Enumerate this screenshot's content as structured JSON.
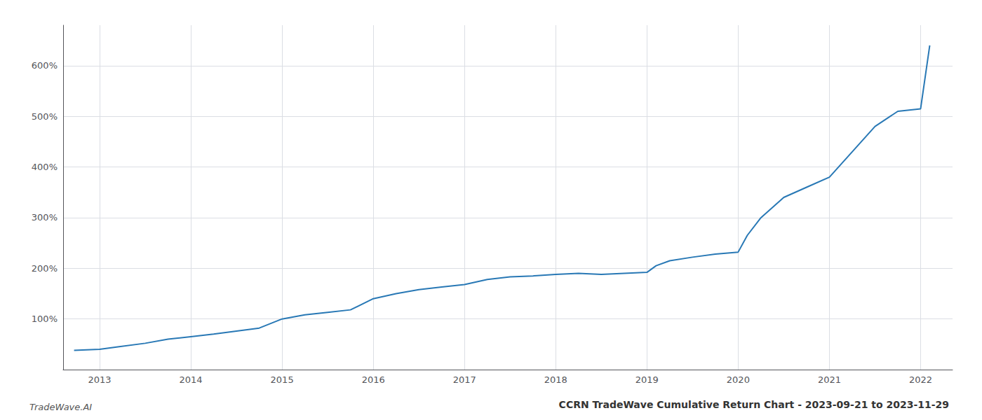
{
  "chart_data": {
    "type": "line",
    "title": "CCRN TradeWave Cumulative Return Chart - 2023-09-21 to 2023-11-29",
    "annotations": [
      "TradeWave.AI"
    ],
    "color": "#2878b5",
    "x": [
      2012.72,
      2013.0,
      2013.2,
      2013.5,
      2013.75,
      2014.0,
      2014.25,
      2014.5,
      2014.75,
      2015.0,
      2015.25,
      2015.5,
      2015.75,
      2016.0,
      2016.25,
      2016.5,
      2016.75,
      2017.0,
      2017.25,
      2017.5,
      2017.75,
      2018.0,
      2018.25,
      2018.5,
      2018.75,
      2019.0,
      2019.1,
      2019.25,
      2019.5,
      2019.75,
      2020.0,
      2020.1,
      2020.25,
      2020.5,
      2020.75,
      2021.0,
      2021.25,
      2021.5,
      2021.75,
      2022.0,
      2022.1
    ],
    "values": [
      38,
      40,
      45,
      52,
      60,
      65,
      70,
      76,
      82,
      100,
      108,
      113,
      118,
      140,
      150,
      158,
      163,
      168,
      178,
      183,
      185,
      188,
      190,
      188,
      190,
      192,
      205,
      215,
      222,
      228,
      232,
      265,
      300,
      340,
      360,
      380,
      430,
      480,
      510,
      515,
      640
    ],
    "xlim": [
      2012.6,
      2022.35
    ],
    "xticks": [
      2013,
      2014,
      2015,
      2016,
      2017,
      2018,
      2019,
      2020,
      2021,
      2022
    ],
    "ylim": [
      0,
      680
    ],
    "yticks": [
      {
        "value": 100,
        "label": "100%"
      },
      {
        "value": 200,
        "label": "200%"
      },
      {
        "value": 300,
        "label": "300%"
      },
      {
        "value": 400,
        "label": "400%"
      },
      {
        "value": 500,
        "label": "500%"
      },
      {
        "value": 600,
        "label": "600%"
      }
    ],
    "grid": true
  }
}
